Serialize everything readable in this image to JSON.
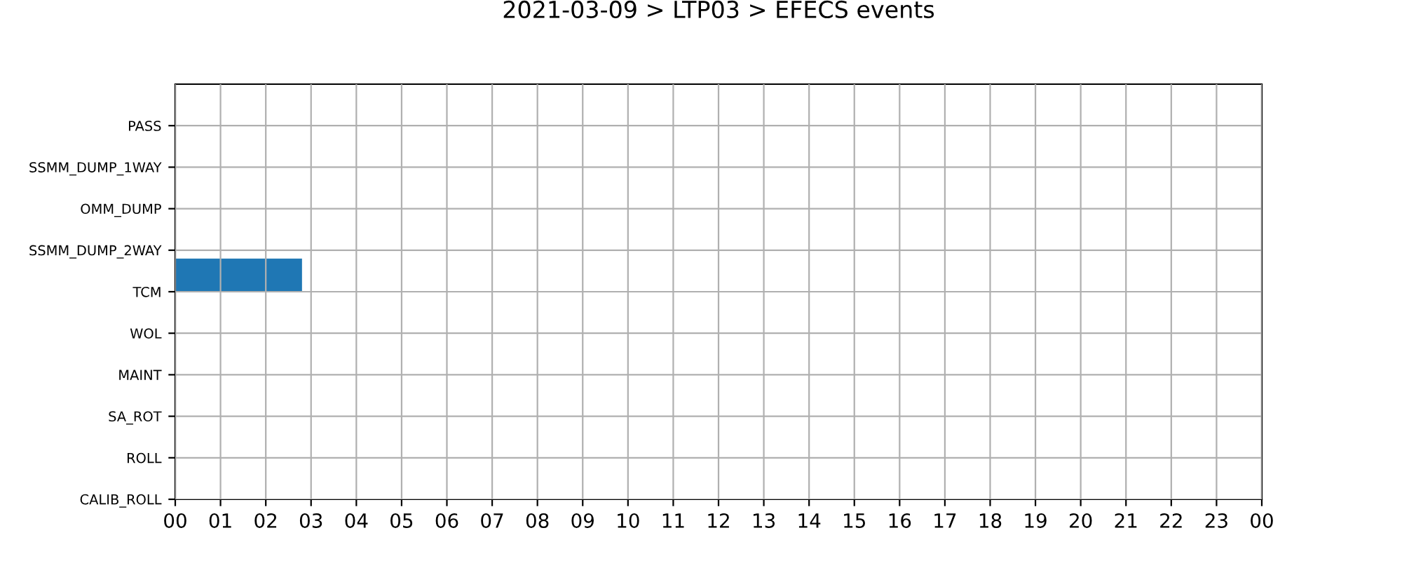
{
  "chart_data": {
    "type": "bar",
    "orientation": "horizontal",
    "title": "2021-03-09 > LTP03 > EFECS events",
    "categories": [
      "PASS",
      "SSMM_DUMP_1WAY",
      "OMM_DUMP",
      "SSMM_DUMP_2WAY",
      "TCM",
      "WOL",
      "MAINT",
      "SA_ROT",
      "ROLL",
      "CALIB_ROLL"
    ],
    "values": [
      null,
      null,
      null,
      null,
      2.8,
      null,
      null,
      null,
      null,
      null
    ],
    "base": [
      null,
      null,
      null,
      null,
      0,
      null,
      null,
      null,
      null,
      null
    ],
    "color": "#1f77b4",
    "xlim": [
      0,
      24
    ],
    "xticks": [
      {
        "value": 0,
        "label": "00"
      },
      {
        "value": 1,
        "label": "01"
      },
      {
        "value": 2,
        "label": "02"
      },
      {
        "value": 3,
        "label": "03"
      },
      {
        "value": 4,
        "label": "04"
      },
      {
        "value": 5,
        "label": "05"
      },
      {
        "value": 6,
        "label": "06"
      },
      {
        "value": 7,
        "label": "07"
      },
      {
        "value": 8,
        "label": "08"
      },
      {
        "value": 9,
        "label": "09"
      },
      {
        "value": 10,
        "label": "10"
      },
      {
        "value": 11,
        "label": "11"
      },
      {
        "value": 12,
        "label": "12"
      },
      {
        "value": 13,
        "label": "13"
      },
      {
        "value": 14,
        "label": "14"
      },
      {
        "value": 15,
        "label": "15"
      },
      {
        "value": 16,
        "label": "16"
      },
      {
        "value": 17,
        "label": "17"
      },
      {
        "value": 18,
        "label": "18"
      },
      {
        "value": 19,
        "label": "19"
      },
      {
        "value": 20,
        "label": "20"
      },
      {
        "value": 21,
        "label": "21"
      },
      {
        "value": 22,
        "label": "22"
      },
      {
        "value": 23,
        "label": "23"
      },
      {
        "value": 24,
        "label": "00"
      }
    ],
    "grid": true
  }
}
